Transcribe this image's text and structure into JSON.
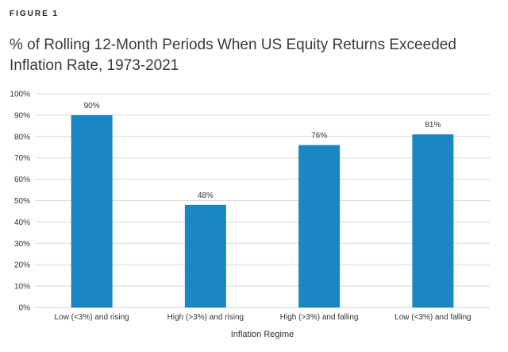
{
  "figure_label": "FIGURE 1",
  "title": "% of Rolling 12-Month Periods When US Equity Returns Exceeded Inflation Rate, 1973-2021",
  "chart_data": {
    "type": "bar",
    "title": "% of Rolling 12-Month Periods When US Equity Returns Exceeded Inflation Rate, 1973-2021",
    "xlabel": "Inflation Regime",
    "ylabel": "",
    "categories": [
      "Low (<3%) and rising",
      "High (>3%) and rising",
      "High (>3%) and falling",
      "Low (<3%) and falling"
    ],
    "values": [
      90,
      48,
      76,
      81
    ],
    "data_labels": [
      "90%",
      "48%",
      "76%",
      "81%"
    ],
    "ylim": [
      0,
      100
    ],
    "yticks": [
      0,
      10,
      20,
      30,
      40,
      50,
      60,
      70,
      80,
      90,
      100
    ],
    "ytick_labels": [
      "0%",
      "10%",
      "20%",
      "30%",
      "40%",
      "50%",
      "60%",
      "70%",
      "80%",
      "90%",
      "100%"
    ],
    "grid": true,
    "legend": "none",
    "bar_color": "#1a87c2",
    "grid_color": "#d9d9d9"
  }
}
